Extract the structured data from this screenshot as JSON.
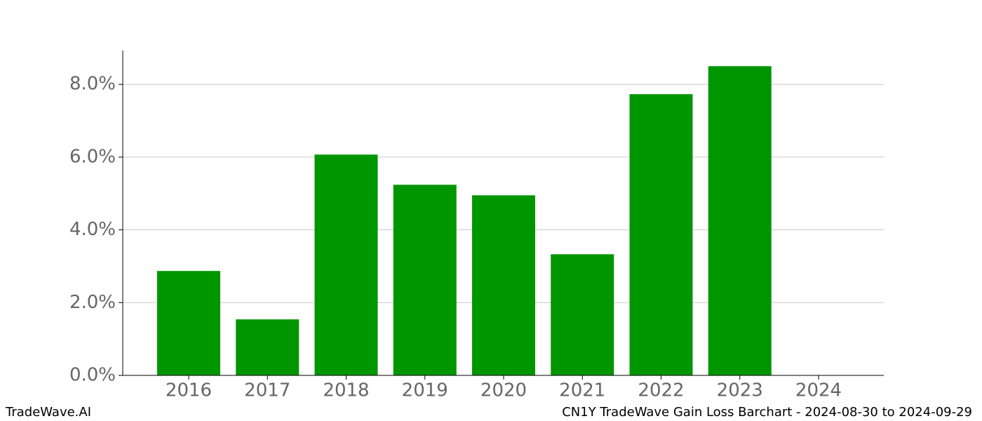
{
  "chart_data": {
    "type": "bar",
    "title": "CN1Y TradeWave Gain Loss Barchart - 2024-08-30 to 2024-09-29",
    "watermark": "TradeWave.AI",
    "categories": [
      "2016",
      "2017",
      "2018",
      "2019",
      "2020",
      "2021",
      "2022",
      "2023",
      "2024"
    ],
    "values": [
      2.87,
      1.54,
      6.07,
      5.24,
      4.95,
      3.33,
      7.73,
      8.5,
      0
    ],
    "color": "#009600",
    "ylim": [
      0,
      8.93
    ],
    "yticks": [
      {
        "value": 0,
        "label": "0.0%"
      },
      {
        "value": 2,
        "label": "2.0%"
      },
      {
        "value": 4,
        "label": "4.0%"
      },
      {
        "value": 6,
        "label": "6.0%"
      },
      {
        "value": 8,
        "label": "8.0%"
      }
    ],
    "grid": true
  }
}
